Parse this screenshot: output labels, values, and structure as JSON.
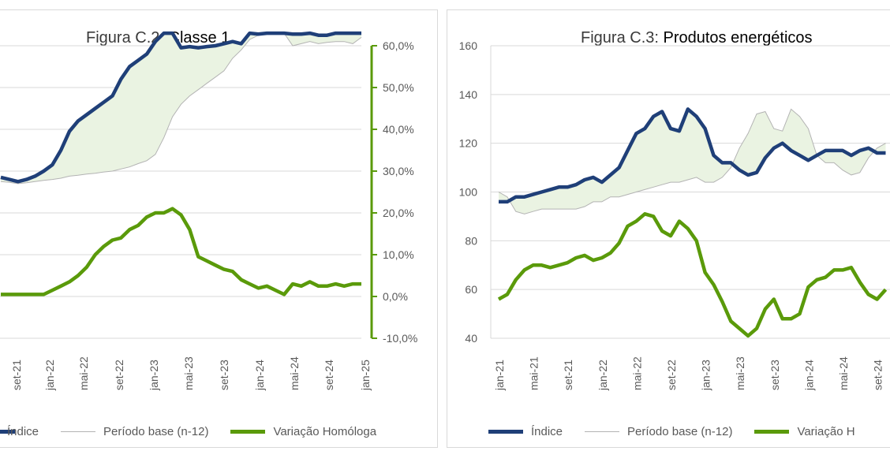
{
  "charts": [
    {
      "id": "c2",
      "title_prefix": "Figura C.2:",
      "title_name": "Classe 1",
      "legend": {
        "index": "Índice",
        "base": "Período base (n-12)",
        "yoy": "Variação Homóloga"
      },
      "colors": {
        "index": "#1f3f78",
        "base": "#b3b3b3",
        "fill": "#eaf3e2",
        "yoy": "#5a9a0a"
      },
      "right_ticks": [
        "60,0%",
        "50,0%",
        "40,0%",
        "30,0%",
        "20,0%",
        "10,0%",
        "0,0%",
        "-10,0%"
      ],
      "x_ticks": [
        "set-21",
        "jan-22",
        "mai-22",
        "set-22",
        "jan-23",
        "mai-23",
        "set-23",
        "jan-24",
        "mai-24",
        "set-24",
        "jan-25"
      ]
    },
    {
      "id": "c3",
      "title_prefix": "Figura C.3:",
      "title_name": "Produtos energéticos",
      "legend": {
        "index": "Índice",
        "base": "Período base (n-12)",
        "yoy": "Variação H"
      },
      "colors": {
        "index": "#1f3f78",
        "base": "#b3b3b3",
        "fill": "#eaf3e2",
        "yoy": "#5a9a0a"
      },
      "left_ticks": [
        "160",
        "140",
        "120",
        "100",
        "80",
        "60",
        "40"
      ],
      "x_ticks": [
        "jan-21",
        "mai-21",
        "set-21",
        "jan-22",
        "mai-22",
        "set-22",
        "jan-23",
        "mai-23",
        "set-23",
        "jan-24",
        "mai-24",
        "set-24"
      ]
    }
  ],
  "chart_data": [
    {
      "type": "line",
      "title": "Figura C.2: Classe 1",
      "x": [
        "jul-21",
        "ago-21",
        "set-21",
        "out-21",
        "nov-21",
        "dez-21",
        "jan-22",
        "fev-22",
        "mar-22",
        "abr-22",
        "mai-22",
        "jun-22",
        "jul-22",
        "ago-22",
        "set-22",
        "out-22",
        "nov-22",
        "dez-22",
        "jan-23",
        "fev-23",
        "mar-23",
        "abr-23",
        "mai-23",
        "jun-23",
        "jul-23",
        "ago-23",
        "set-23",
        "out-23",
        "nov-23",
        "dez-23",
        "jan-24",
        "fev-24",
        "mar-24",
        "abr-24",
        "mai-24",
        "jun-24",
        "jul-24",
        "ago-24",
        "set-24",
        "out-24",
        "nov-24",
        "dez-24",
        "jan-25"
      ],
      "y2lim": [
        -10,
        60
      ],
      "series": [
        {
          "name": "Índice",
          "axis": "left",
          "values": [
            28.5,
            28.0,
            27.5,
            28.0,
            28.8,
            30.0,
            31.5,
            35.0,
            39.5,
            42.0,
            43.5,
            45.0,
            46.5,
            48.0,
            52.0,
            55.0,
            56.5,
            58.0,
            61.0,
            63.0,
            63.0,
            59.5,
            59.8,
            59.5,
            59.8,
            60.0,
            60.5,
            61.0,
            60.5,
            63.0,
            62.8,
            63.0,
            63.0,
            63.0,
            62.8,
            62.8,
            63.0,
            62.5,
            62.5,
            63.0,
            63.0,
            63.0,
            63.0
          ]
        },
        {
          "name": "Período base (n-12)",
          "axis": "left",
          "values": [
            27.5,
            27.3,
            27.0,
            27.2,
            27.5,
            27.8,
            28.0,
            28.3,
            28.8,
            29.0,
            29.3,
            29.5,
            29.8,
            30.0,
            30.5,
            31.0,
            31.8,
            32.5,
            34.0,
            38.0,
            43.0,
            46.0,
            48.0,
            49.5,
            51.0,
            52.5,
            54.0,
            57.0,
            59.0,
            61.5,
            62.5,
            63.0,
            63.0,
            63.0,
            60.0,
            60.5,
            61.0,
            60.5,
            60.8,
            61.0,
            61.0,
            60.5,
            62.0
          ]
        },
        {
          "name": "Variação Homóloga",
          "axis": "right",
          "values": [
            0.5,
            0.5,
            0.5,
            0.5,
            0.5,
            0.5,
            1.5,
            2.5,
            3.5,
            5.0,
            7.0,
            10.0,
            12.0,
            13.5,
            14.0,
            16.0,
            17.0,
            19.0,
            20.0,
            20.0,
            21.0,
            19.5,
            16.0,
            9.5,
            8.5,
            7.5,
            6.5,
            6.0,
            4.0,
            3.0,
            2.0,
            2.5,
            1.5,
            0.5,
            3.0,
            2.5,
            3.5,
            2.5,
            2.5,
            3.0,
            2.5,
            3.0,
            3.0
          ]
        }
      ]
    },
    {
      "type": "line",
      "title": "Figura C.3: Produtos energéticos",
      "x": [
        "jan-21",
        "fev-21",
        "mar-21",
        "abr-21",
        "mai-21",
        "jun-21",
        "jul-21",
        "ago-21",
        "set-21",
        "out-21",
        "nov-21",
        "dez-21",
        "jan-22",
        "fev-22",
        "mar-22",
        "abr-22",
        "mai-22",
        "jun-22",
        "jul-22",
        "ago-22",
        "set-22",
        "out-22",
        "nov-22",
        "dez-22",
        "jan-23",
        "fev-23",
        "mar-23",
        "abr-23",
        "mai-23",
        "jun-23",
        "jul-23",
        "ago-23",
        "set-23",
        "out-23",
        "nov-23",
        "dez-23",
        "jan-24",
        "fev-24",
        "mar-24",
        "abr-24",
        "mai-24",
        "jun-24",
        "jul-24",
        "ago-24",
        "set-24",
        "out-24"
      ],
      "ylim": [
        40,
        160
      ],
      "series": [
        {
          "name": "Índice",
          "values": [
            96,
            96,
            98,
            98,
            99,
            100,
            101,
            102,
            102,
            103,
            105,
            106,
            104,
            107,
            110,
            117,
            124,
            126,
            131,
            133,
            126,
            125,
            134,
            131,
            126,
            115,
            112,
            112,
            109,
            107,
            108,
            114,
            118,
            120,
            117,
            115,
            113,
            115,
            117,
            117,
            117,
            115,
            117,
            118,
            116,
            116
          ]
        },
        {
          "name": "Período base (n-12)",
          "values": [
            100,
            98,
            92,
            91,
            92,
            93,
            93,
            93,
            93,
            93,
            94,
            96,
            96,
            98,
            98,
            99,
            100,
            101,
            102,
            103,
            104,
            104,
            105,
            106,
            104,
            104,
            106,
            110,
            118,
            124,
            132,
            133,
            126,
            125,
            134,
            131,
            126,
            115,
            112,
            112,
            109,
            107,
            108,
            114,
            118,
            120
          ]
        },
        {
          "name": "Variação Homóloga",
          "values": [
            56,
            58,
            64,
            68,
            70,
            70,
            69,
            70,
            71,
            73,
            74,
            72,
            73,
            75,
            79,
            86,
            88,
            91,
            90,
            84,
            82,
            88,
            85,
            80,
            67,
            62,
            55,
            47,
            44,
            41,
            44,
            52,
            56,
            48,
            48,
            50,
            61,
            64,
            65,
            68,
            68,
            69,
            63,
            58,
            56,
            60
          ]
        }
      ]
    }
  ]
}
